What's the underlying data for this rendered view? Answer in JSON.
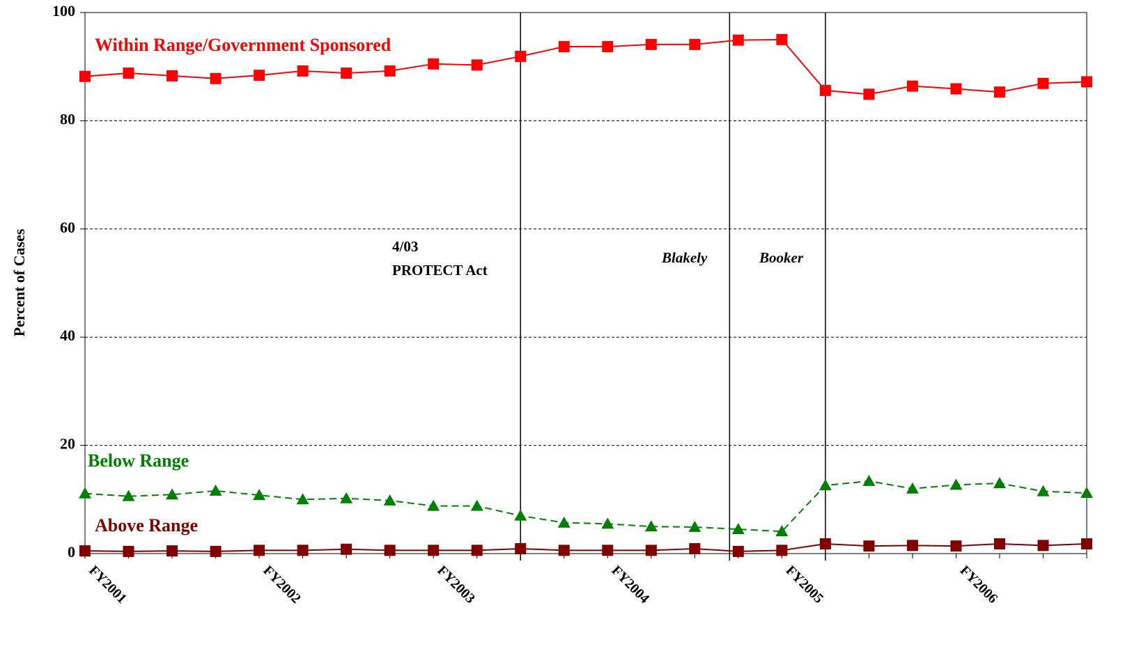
{
  "chart_data": {
    "type": "line",
    "y_label": "Percent of Cases",
    "categories": [
      "FY2001",
      null,
      null,
      null,
      "FY2002",
      null,
      null,
      null,
      "FY2003",
      null,
      null,
      null,
      "FY2004",
      null,
      null,
      null,
      "FY2005",
      null,
      null,
      null,
      "FY2006",
      null,
      null,
      null
    ],
    "series": [
      {
        "name": "Within Range/Government Sponsored",
        "color": "#ff0000",
        "marker": "square",
        "line_style": "solid",
        "values": [
          88.2,
          88.8,
          88.3,
          87.8,
          88.4,
          89.2,
          88.8,
          89.2,
          90.5,
          90.3,
          91.9,
          93.7,
          93.7,
          94.1,
          94.1,
          94.9,
          95.0,
          85.6,
          84.9,
          86.4,
          85.9,
          85.3,
          86.9,
          87.2
        ]
      },
      {
        "name": "Below Range",
        "color": "#008000",
        "marker": "triangle",
        "line_style": "dashed",
        "values": [
          11.1,
          10.6,
          10.9,
          11.6,
          10.8,
          10.0,
          10.2,
          9.8,
          8.8,
          8.8,
          7.0,
          5.7,
          5.5,
          5.0,
          4.9,
          4.5,
          4.1,
          12.6,
          13.4,
          12.0,
          12.7,
          13.0,
          11.5,
          11.2
        ]
      },
      {
        "name": "Above Range",
        "color": "#800000",
        "marker": "square",
        "line_style": "solid",
        "values": [
          0.5,
          0.4,
          0.5,
          0.4,
          0.6,
          0.6,
          0.8,
          0.6,
          0.6,
          0.6,
          0.9,
          0.6,
          0.6,
          0.6,
          0.9,
          0.4,
          0.6,
          1.8,
          1.4,
          1.5,
          1.4,
          1.8,
          1.5,
          1.8
        ]
      }
    ],
    "events": [
      {
        "lines": [
          "4/03",
          "PROTECT Act"
        ],
        "index": 10,
        "italic": false
      },
      {
        "lines": [
          "Blakely"
        ],
        "index": 14.8,
        "italic": true
      },
      {
        "lines": [
          "Booker"
        ],
        "index": 17,
        "italic": true
      }
    ],
    "ylim": [
      0,
      100
    ],
    "yticks": [
      0,
      20,
      40,
      60,
      80,
      100
    ],
    "grid": true
  }
}
